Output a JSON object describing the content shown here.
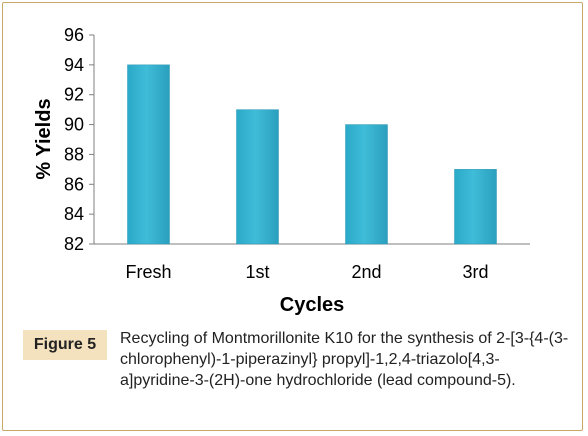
{
  "chart_data": {
    "type": "bar",
    "categories": [
      "Fresh",
      "1st",
      "2nd",
      "3rd"
    ],
    "values": [
      94,
      91,
      90,
      87
    ],
    "xlabel": "Cycles",
    "ylabel": "% Yields",
    "ylim": [
      82,
      96
    ],
    "yticks": [
      "82",
      "84",
      "86",
      "88",
      "90",
      "92",
      "94",
      "96"
    ],
    "grid": false,
    "bar_color": "#3fbcd8"
  },
  "figure": {
    "label": "Figure 5",
    "caption": "Recycling of Montmorillonite K10 for the synthesis of 2-[3-{4-(3-chlorophenyl)-1-piperazinyl} propyl]-1,2,4-triazolo[4,3-a]pyridine-3-(2H)-one hydrochloride (lead compound-5)."
  }
}
